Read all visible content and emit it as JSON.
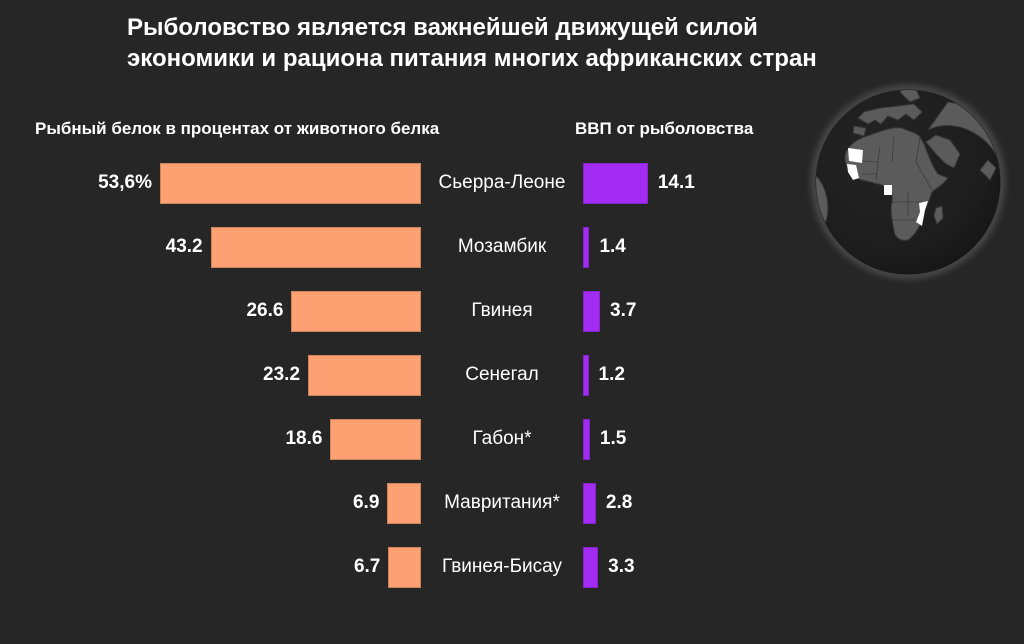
{
  "title": {
    "line1": "Рыболовство является важнейшей движущей силой",
    "line2": "экономики и рациона питания многих африканских стран"
  },
  "headers": {
    "left": "Рыбный белок в процентах от животного белка",
    "right": "ВВП от рыболовства"
  },
  "colors": {
    "background": "#262626",
    "text": "#ffffff",
    "protein_bar": "#FDA173",
    "gdp_bar": "#A32CF4",
    "globe_land": "#5b5b5b",
    "globe_ocean": "#1d1d1d",
    "globe_highlight": "#ffffff"
  },
  "chart_data": {
    "type": "bar",
    "orientation": "horizontal",
    "title": "Рыболовство является важнейшей движущей силой экономики и рациона питания многих африканских стран",
    "categories": [
      "Сьерра-Леоне",
      "Мозамбик",
      "Гвинея",
      "Сенегал",
      "Габон*",
      "Мавритания*",
      "Гвинея-Бисау"
    ],
    "series": [
      {
        "name": "Рыбный белок в процентах от животного белка",
        "values": [
          53.6,
          43.2,
          26.6,
          23.2,
          18.6,
          6.9,
          6.7
        ],
        "labels": [
          "53,6%",
          "43.2",
          "26.6",
          "23.2",
          "18.6",
          "6.9",
          "6.7"
        ],
        "color": "#FDA173",
        "align": "right"
      },
      {
        "name": "ВВП от рыболовства",
        "values": [
          14.1,
          1.4,
          3.7,
          1.2,
          1.5,
          2.8,
          3.3
        ],
        "labels": [
          "14.1",
          "1.4",
          "3.7",
          "1.2",
          "1.5",
          "2.8",
          "3.3"
        ],
        "color": "#A32CF4",
        "align": "left"
      }
    ],
    "legend": "none",
    "grid": false
  },
  "globe": {
    "description": "dark globe centered on Africa",
    "highlights": [
      "west-africa-cluster",
      "gabon",
      "mozambique"
    ]
  }
}
